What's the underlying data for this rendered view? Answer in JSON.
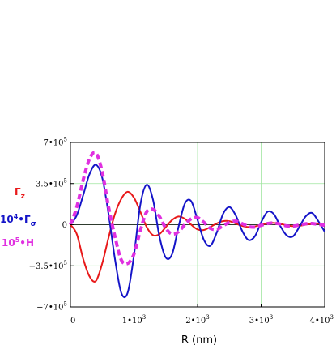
{
  "chart_data": {
    "type": "line",
    "title": "",
    "xlabel": "R (nm)",
    "ylabel": "",
    "xlim": [
      0,
      4000
    ],
    "ylim": [
      -700000,
      700000
    ],
    "grid": true,
    "x_ticks": [
      {
        "value": 0,
        "label": "0"
      },
      {
        "value": 1000,
        "label": "1•10",
        "exp": "3"
      },
      {
        "value": 2000,
        "label": "2•10",
        "exp": "3"
      },
      {
        "value": 3000,
        "label": "3•10",
        "exp": "3"
      },
      {
        "value": 4000,
        "label": "4•10",
        "exp": "3"
      }
    ],
    "y_ticks": [
      {
        "value": 700000,
        "label": "7•10",
        "exp": "5"
      },
      {
        "value": 350000,
        "label": "3.5•10",
        "exp": "5"
      },
      {
        "value": 0,
        "label": "0",
        "exp": ""
      },
      {
        "value": -350000,
        "label": "−3.5•10",
        "exp": "5"
      },
      {
        "value": -700000,
        "label": "−7•10",
        "exp": "5"
      }
    ],
    "series": [
      {
        "name": "Γz",
        "legend_main": "Γ",
        "legend_sub": "z",
        "legend_sup": "",
        "color": "#e8191a",
        "style": "solid",
        "x": [
          0,
          100,
          200,
          300,
          400,
          500,
          600,
          700,
          800,
          900,
          1000,
          1100,
          1200,
          1300,
          1400,
          1500,
          1600,
          1700,
          1800,
          1900,
          2000,
          2100,
          2200,
          2300,
          2400,
          2500,
          2600,
          2700,
          2800,
          2900,
          3000,
          3100,
          3200,
          3300,
          3400,
          3500,
          3600,
          3700,
          3800,
          3900,
          4000
        ],
        "y": [
          0,
          -80000,
          -290000,
          -440000,
          -480000,
          -330000,
          -110000,
          90000,
          220000,
          280000,
          230000,
          110000,
          -20000,
          -90000,
          -80000,
          -20000,
          40000,
          70000,
          50000,
          0,
          -40000,
          -45000,
          -20000,
          10000,
          30000,
          30000,
          10000,
          -10000,
          -20000,
          -15000,
          0,
          12000,
          15000,
          8000,
          -5000,
          -12000,
          -10000,
          0,
          8000,
          10000,
          5000
        ]
      },
      {
        "name": "10⁴·Γσ",
        "legend_main": "10",
        "legend_sup": "4",
        "legend_tail": "•Γ",
        "legend_sub": "σ",
        "color": "#1414c8",
        "style": "solid",
        "x": [
          0,
          100,
          200,
          300,
          400,
          500,
          600,
          700,
          800,
          900,
          1000,
          1100,
          1200,
          1300,
          1400,
          1500,
          1600,
          1700,
          1800,
          1900,
          2000,
          2100,
          2200,
          2300,
          2400,
          2500,
          2600,
          2700,
          2800,
          2900,
          3000,
          3100,
          3200,
          3300,
          3400,
          3500,
          3600,
          3700,
          3800,
          3900,
          4000
        ],
        "y": [
          0,
          80000,
          250000,
          430000,
          510000,
          400000,
          90000,
          -290000,
          -580000,
          -580000,
          -260000,
          170000,
          340000,
          210000,
          -100000,
          -280000,
          -250000,
          -20000,
          180000,
          200000,
          40000,
          -130000,
          -180000,
          -70000,
          90000,
          150000,
          80000,
          -50000,
          -130000,
          -100000,
          20000,
          110000,
          90000,
          -10000,
          -90000,
          -100000,
          -20000,
          70000,
          100000,
          30000,
          -60000
        ]
      },
      {
        "name": "10⁵·H",
        "legend_main": "10",
        "legend_sup": "5",
        "legend_tail": "•H",
        "legend_sub": "",
        "color": "#e030e0",
        "style": "dashed",
        "x": [
          0,
          100,
          200,
          300,
          400,
          500,
          600,
          700,
          800,
          900,
          1000,
          1100,
          1200,
          1300,
          1400,
          1500,
          1600,
          1700,
          1800,
          1900,
          2000,
          2100,
          2200,
          2300,
          2400,
          2500,
          2600,
          2700,
          2800,
          2900,
          3000,
          3100,
          3200,
          3300,
          3400,
          3500,
          3600,
          3700,
          3800,
          3900,
          4000
        ],
        "y": [
          0,
          150000,
          380000,
          560000,
          610000,
          450000,
          150000,
          -100000,
          -300000,
          -330000,
          -250000,
          -50000,
          110000,
          130000,
          70000,
          -30000,
          -80000,
          -60000,
          0,
          50000,
          60000,
          20000,
          -30000,
          -40000,
          -10000,
          20000,
          30000,
          10000,
          -15000,
          -20000,
          -5000,
          10000,
          15000,
          5000,
          -10000,
          -12000,
          -3000,
          8000,
          10000,
          3000,
          -5000
        ]
      }
    ]
  }
}
